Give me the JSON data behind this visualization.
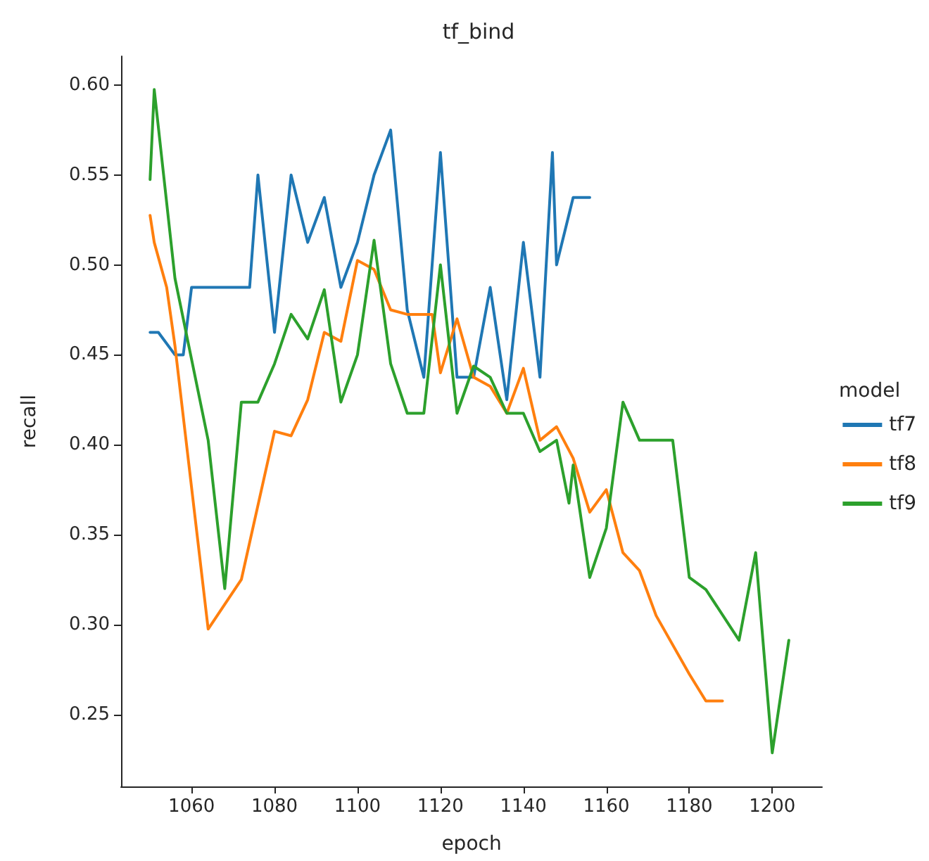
{
  "chart_data": {
    "type": "line",
    "title": "tf_bind",
    "xlabel": "epoch",
    "ylabel": "recall",
    "legend_title": "model",
    "legend": "right",
    "grid": false,
    "marker": "none",
    "line_style": "solid",
    "xlim": [
      1043,
      1212
    ],
    "xticks": [
      1060,
      1080,
      1100,
      1120,
      1140,
      1160,
      1180,
      1200
    ],
    "ylim": [
      0.21,
      0.616
    ],
    "yticks": [
      0.25,
      {
        "value": 0.3,
        "label": "0.30"
      },
      0.35,
      {
        "value": 0.4,
        "label": "0.40"
      },
      0.45,
      {
        "value": 0.5,
        "label": "0.50"
      },
      0.55,
      {
        "value": 0.6,
        "label": "0.60"
      }
    ],
    "series": [
      {
        "name": "tf7",
        "color": "#1f77b4",
        "x": [
          1050,
          1052,
          1056,
          1058,
          1060,
          1064,
          1068,
          1072,
          1074,
          1076,
          1080,
          1084,
          1088,
          1092,
          1096,
          1100,
          1104,
          1108,
          1112,
          1116,
          1120,
          1124,
          1128,
          1132,
          1136,
          1140,
          1144,
          1147,
          1148,
          1152,
          1156
        ],
        "values": [
          0.4625,
          0.4625,
          0.45,
          0.45,
          0.4875,
          0.4875,
          0.4875,
          0.4875,
          0.4875,
          0.55,
          0.4625,
          0.55,
          0.5125,
          0.5375,
          0.4875,
          0.5125,
          0.55,
          0.575,
          0.475,
          0.4375,
          0.5625,
          0.4375,
          0.4375,
          0.4875,
          0.425,
          0.5125,
          0.4375,
          0.5625,
          0.5,
          0.5375,
          0.5375
        ]
      },
      {
        "name": "tf8",
        "color": "#ff7f0e",
        "x": [
          1050,
          1051,
          1054,
          1056,
          1064,
          1072,
          1080,
          1084,
          1088,
          1092,
          1096,
          1100,
          1104,
          1108,
          1112,
          1118,
          1120,
          1124,
          1128,
          1132,
          1136,
          1140,
          1144,
          1148,
          1152,
          1156,
          1160,
          1164,
          1168,
          1172,
          1180,
          1184,
          1188
        ],
        "values": [
          0.5275,
          0.5125,
          0.4875,
          0.455,
          0.2975,
          0.325,
          0.4075,
          0.405,
          0.425,
          0.4625,
          0.4575,
          0.5025,
          0.4975,
          0.475,
          0.4725,
          0.4725,
          0.44,
          0.47,
          0.4375,
          0.4325,
          0.4175,
          0.4425,
          0.4025,
          0.41,
          0.3925,
          0.3625,
          0.375,
          0.34,
          0.33,
          0.305,
          0.2725,
          0.2575,
          0.2575
        ]
      },
      {
        "name": "tf9",
        "color": "#2ca02c",
        "x": [
          1050,
          1051,
          1056,
          1064,
          1068,
          1072,
          1076,
          1080,
          1084,
          1088,
          1092,
          1096,
          1100,
          1104,
          1108,
          1112,
          1116,
          1120,
          1124,
          1128,
          1132,
          1136,
          1140,
          1144,
          1148,
          1151,
          1152,
          1156,
          1160,
          1164,
          1168,
          1176,
          1180,
          1184,
          1192,
          1196,
          1200,
          1204
        ],
        "values": [
          0.5475,
          0.5975,
          0.4925,
          0.4025,
          0.32,
          0.4237,
          0.4237,
          0.445,
          0.4725,
          0.4588,
          0.4862,
          0.4237,
          0.45,
          0.5137,
          0.445,
          0.4175,
          0.4175,
          0.5,
          0.4175,
          0.4437,
          0.4375,
          0.4175,
          0.4175,
          0.3962,
          0.4025,
          0.3675,
          0.3887,
          0.3262,
          0.3537,
          0.4237,
          0.4025,
          0.4025,
          0.3262,
          0.3195,
          0.2913,
          0.34,
          0.2287,
          0.2913
        ]
      }
    ]
  }
}
